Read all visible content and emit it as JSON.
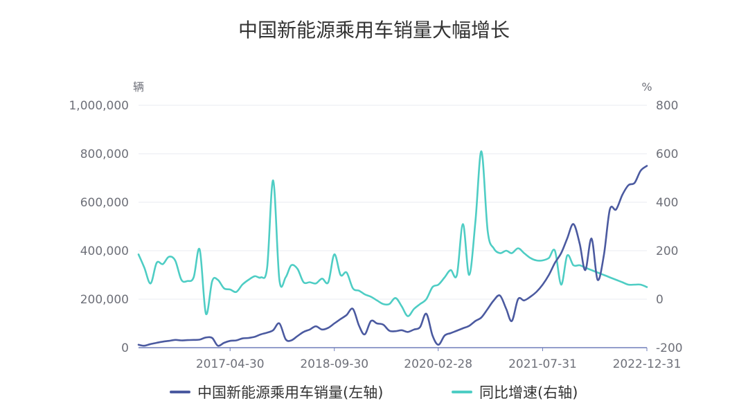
{
  "title": "中国新能源乘用车销量大幅增长",
  "left_unit": "辆",
  "right_unit": "%",
  "legend": [
    {
      "label": "中国新能源乘用车销量(左轴)",
      "color": "#4b5aa0"
    },
    {
      "label": "同比增速(右轴)",
      "color": "#4ecdc4"
    }
  ],
  "chart_data": {
    "type": "line",
    "title": "中国新能源乘用车销量大幅增长",
    "x_tick_labels": [
      "2017-04-30",
      "2018-09-30",
      "2020-02-28",
      "2021-07-31",
      "2022-12-31"
    ],
    "x_range": [
      "2016-01-31",
      "2022-12-31"
    ],
    "left_axis": {
      "unit": "辆",
      "ylim": [
        0,
        1000000
      ],
      "ticks": [
        0,
        200000,
        400000,
        600000,
        800000,
        1000000
      ],
      "tick_labels": [
        "0",
        "200,000",
        "400,000",
        "600,000",
        "800,000",
        "1,000,000"
      ]
    },
    "right_axis": {
      "unit": "%",
      "ylim": [
        -200,
        800
      ],
      "ticks": [
        -200,
        0,
        200,
        400,
        600,
        800
      ],
      "tick_labels": [
        "-200",
        "0",
        "200",
        "400",
        "600",
        "800"
      ]
    },
    "grid": true,
    "legend_position": "bottom",
    "series": [
      {
        "name": "中国新能源乘用车销量(左轴)",
        "axis": "left",
        "color": "#4b5aa0",
        "x": [
          "2016-01-31",
          "2016-02-29",
          "2016-03-31",
          "2016-04-30",
          "2016-05-31",
          "2016-06-30",
          "2016-07-31",
          "2016-08-31",
          "2016-09-30",
          "2016-10-31",
          "2016-11-30",
          "2016-12-31",
          "2017-01-31",
          "2017-02-28",
          "2017-03-31",
          "2017-04-30",
          "2017-05-31",
          "2017-06-30",
          "2017-07-31",
          "2017-08-31",
          "2017-09-30",
          "2017-10-31",
          "2017-11-30",
          "2017-12-31",
          "2018-01-31",
          "2018-02-28",
          "2018-03-31",
          "2018-04-30",
          "2018-05-31",
          "2018-06-30",
          "2018-07-31",
          "2018-08-31",
          "2018-09-30",
          "2018-10-31",
          "2018-11-30",
          "2018-12-31",
          "2019-01-31",
          "2019-02-28",
          "2019-03-31",
          "2019-04-30",
          "2019-05-31",
          "2019-06-30",
          "2019-07-31",
          "2019-08-31",
          "2019-09-30",
          "2019-10-31",
          "2019-11-30",
          "2019-12-31",
          "2020-01-31",
          "2020-02-29",
          "2020-03-31",
          "2020-04-30",
          "2020-05-31",
          "2020-06-30",
          "2020-07-31",
          "2020-08-31",
          "2020-09-30",
          "2020-10-31",
          "2020-11-30",
          "2020-12-31",
          "2021-01-31",
          "2021-02-28",
          "2021-03-31",
          "2021-04-30",
          "2021-05-31",
          "2021-06-30",
          "2021-07-31",
          "2021-08-31",
          "2021-09-30",
          "2021-10-31",
          "2021-11-30",
          "2021-12-31",
          "2022-01-31",
          "2022-02-28",
          "2022-03-31",
          "2022-04-30",
          "2022-05-31",
          "2022-06-30",
          "2022-07-31",
          "2022-08-31",
          "2022-09-30",
          "2022-10-31",
          "2022-11-30",
          "2022-12-31"
        ],
        "values": [
          12000,
          8000,
          15000,
          20000,
          25000,
          28000,
          32000,
          30000,
          31000,
          32000,
          33000,
          42000,
          40000,
          8000,
          20000,
          28000,
          30000,
          38000,
          40000,
          45000,
          55000,
          62000,
          72000,
          100000,
          35000,
          30000,
          48000,
          65000,
          75000,
          88000,
          75000,
          82000,
          100000,
          118000,
          135000,
          160000,
          90000,
          55000,
          110000,
          100000,
          95000,
          70000,
          68000,
          72000,
          65000,
          75000,
          85000,
          140000,
          50000,
          12000,
          50000,
          60000,
          70000,
          80000,
          90000,
          110000,
          125000,
          160000,
          195000,
          215000,
          160000,
          110000,
          200000,
          195000,
          210000,
          230000,
          260000,
          300000,
          350000,
          390000,
          450000,
          510000,
          430000,
          320000,
          450000,
          280000,
          380000,
          570000,
          570000,
          630000,
          670000,
          680000,
          730000,
          750000
        ]
      },
      {
        "name": "同比增速(右轴)",
        "axis": "right",
        "color": "#4ecdc4",
        "x": [
          "2016-01-31",
          "2016-02-29",
          "2016-03-31",
          "2016-04-30",
          "2016-05-31",
          "2016-06-30",
          "2016-07-31",
          "2016-08-31",
          "2016-09-30",
          "2016-10-31",
          "2016-11-30",
          "2016-12-31",
          "2017-01-31",
          "2017-02-28",
          "2017-03-31",
          "2017-04-30",
          "2017-05-31",
          "2017-06-30",
          "2017-07-31",
          "2017-08-31",
          "2017-09-30",
          "2017-10-31",
          "2017-11-30",
          "2017-12-31",
          "2018-01-31",
          "2018-02-28",
          "2018-03-31",
          "2018-04-30",
          "2018-05-31",
          "2018-06-30",
          "2018-07-31",
          "2018-08-31",
          "2018-09-30",
          "2018-10-31",
          "2018-11-30",
          "2018-12-31",
          "2019-01-31",
          "2019-02-28",
          "2019-03-31",
          "2019-04-30",
          "2019-05-31",
          "2019-06-30",
          "2019-07-31",
          "2019-08-31",
          "2019-09-30",
          "2019-10-31",
          "2019-11-30",
          "2019-12-31",
          "2020-01-31",
          "2020-02-29",
          "2020-03-31",
          "2020-04-30",
          "2020-05-31",
          "2020-06-30",
          "2020-07-31",
          "2020-08-31",
          "2020-09-30",
          "2020-10-31",
          "2020-11-30",
          "2020-12-31",
          "2021-01-31",
          "2021-02-28",
          "2021-03-31",
          "2021-04-30",
          "2021-05-31",
          "2021-06-30",
          "2021-07-31",
          "2021-08-31",
          "2021-09-30",
          "2021-10-31",
          "2021-11-30",
          "2021-12-31",
          "2022-01-31",
          "2022-02-28",
          "2022-03-31",
          "2022-04-30",
          "2022-05-31",
          "2022-06-30",
          "2022-07-31",
          "2022-08-31",
          "2022-09-30",
          "2022-10-31",
          "2022-11-30",
          "2022-12-31"
        ],
        "values": [
          185,
          130,
          65,
          150,
          145,
          175,
          160,
          80,
          75,
          90,
          205,
          -60,
          75,
          80,
          45,
          40,
          30,
          60,
          80,
          95,
          90,
          130,
          490,
          80,
          90,
          140,
          125,
          70,
          70,
          65,
          85,
          70,
          185,
          100,
          110,
          45,
          35,
          20,
          10,
          -5,
          -20,
          -20,
          5,
          -30,
          -70,
          -40,
          -20,
          0,
          50,
          60,
          90,
          120,
          100,
          310,
          100,
          320,
          610,
          280,
          210,
          190,
          200,
          190,
          210,
          190,
          170,
          160,
          160,
          170,
          200,
          60,
          180,
          140,
          140,
          130,
          120,
          110,
          100,
          90,
          80,
          70,
          60,
          60,
          60,
          50
        ]
      }
    ]
  }
}
